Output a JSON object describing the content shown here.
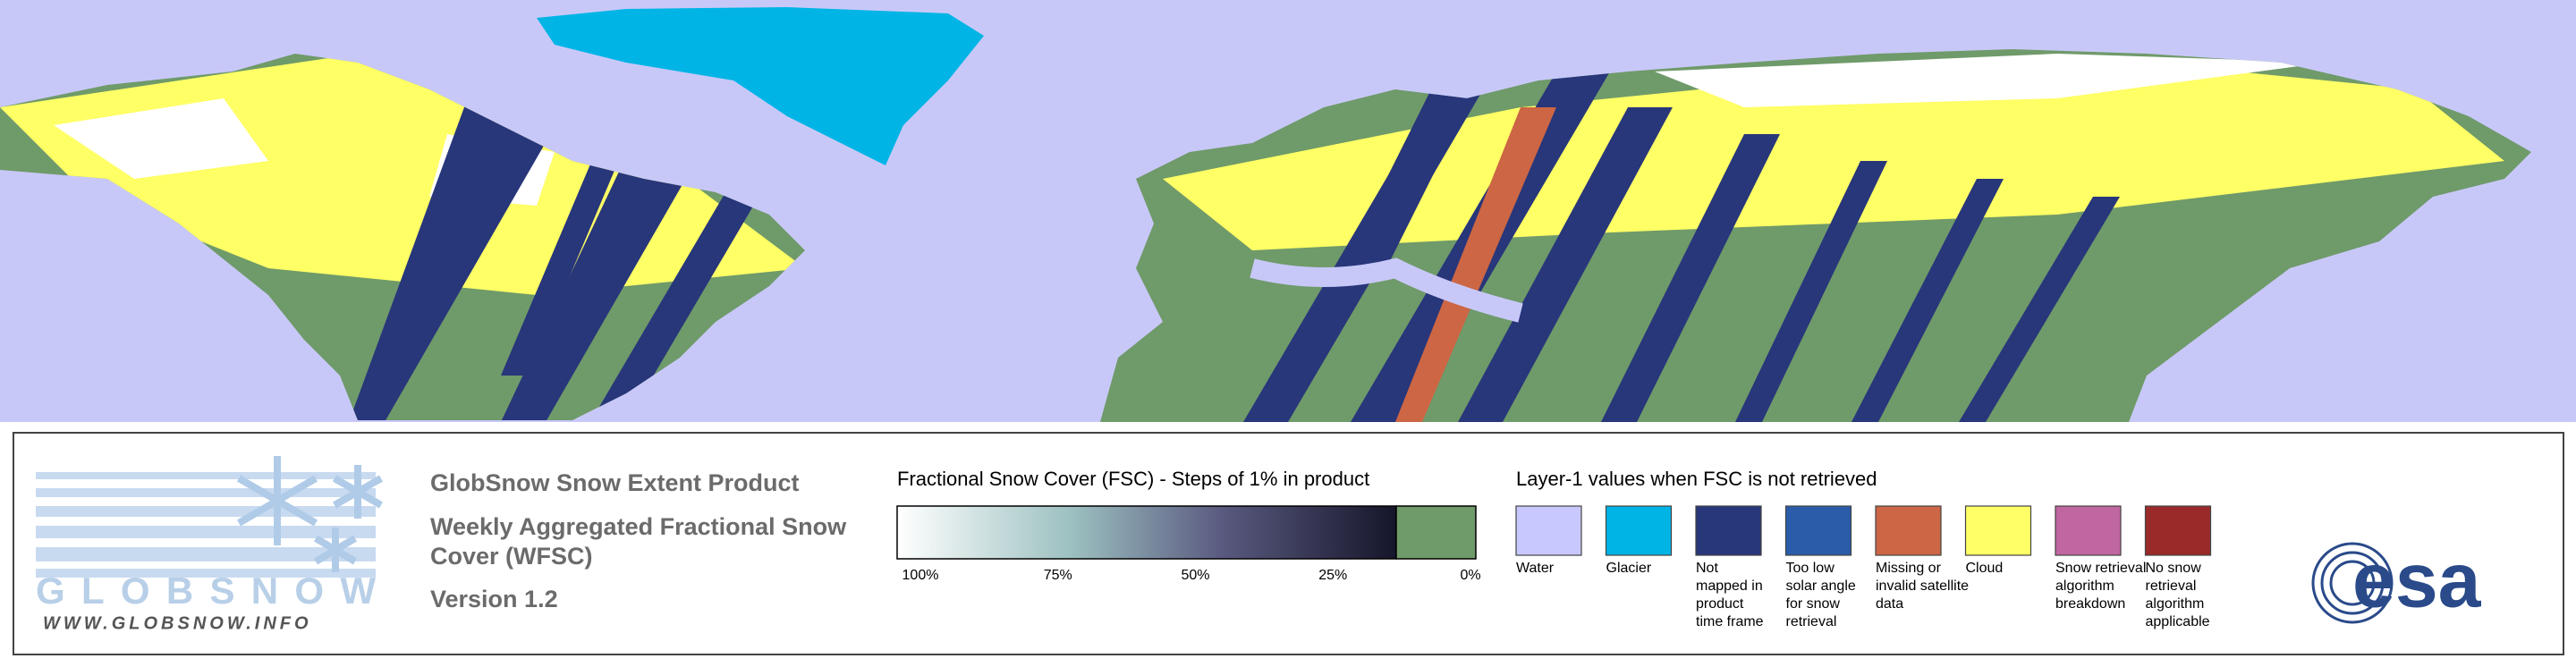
{
  "logo": {
    "name": "GLOBSNOW",
    "url": "WWW.GLOBSNOW.INFO"
  },
  "product": {
    "title": "GlobSnow Snow Extent Product",
    "subtitle_lines": [
      "Weekly Aggregated Fractional Snow",
      "Cover (WFSC)"
    ],
    "version": "Version 1.2"
  },
  "colorbar": {
    "title": "Fractional Snow Cover (FSC) - Steps of 1% in product",
    "ticks": [
      {
        "value": 100,
        "label": "100%"
      },
      {
        "value": 75,
        "label": "75%"
      },
      {
        "value": 50,
        "label": "50%"
      },
      {
        "value": 25,
        "label": "25%"
      },
      {
        "value": 0,
        "label": "0%"
      }
    ]
  },
  "layer1": {
    "title": "Layer-1 values when FSC is not retrieved",
    "items": [
      {
        "color": "#c8c8ff",
        "lines": [
          "Water"
        ]
      },
      {
        "color": "#00b4e6",
        "lines": [
          "Glacier"
        ]
      },
      {
        "color": "#28367a",
        "lines": [
          "Not",
          "mapped in",
          "product",
          "time frame"
        ]
      },
      {
        "color": "#2a5caa",
        "lines": [
          "Too low",
          "solar angle",
          "for snow",
          "retrieval"
        ]
      },
      {
        "color": "#cc6644",
        "lines": [
          "Missing or",
          "invalid satellite",
          "data"
        ]
      },
      {
        "color": "#ffff66",
        "lines": [
          "Cloud"
        ]
      },
      {
        "color": "#c066a0",
        "lines": [
          "Snow retrieval",
          "algorithm",
          "breakdown"
        ]
      },
      {
        "color": "#9a2a2a",
        "lines": [
          "No snow",
          "retrieval",
          "algorithm",
          "applicable"
        ]
      }
    ]
  },
  "agency": "esa"
}
